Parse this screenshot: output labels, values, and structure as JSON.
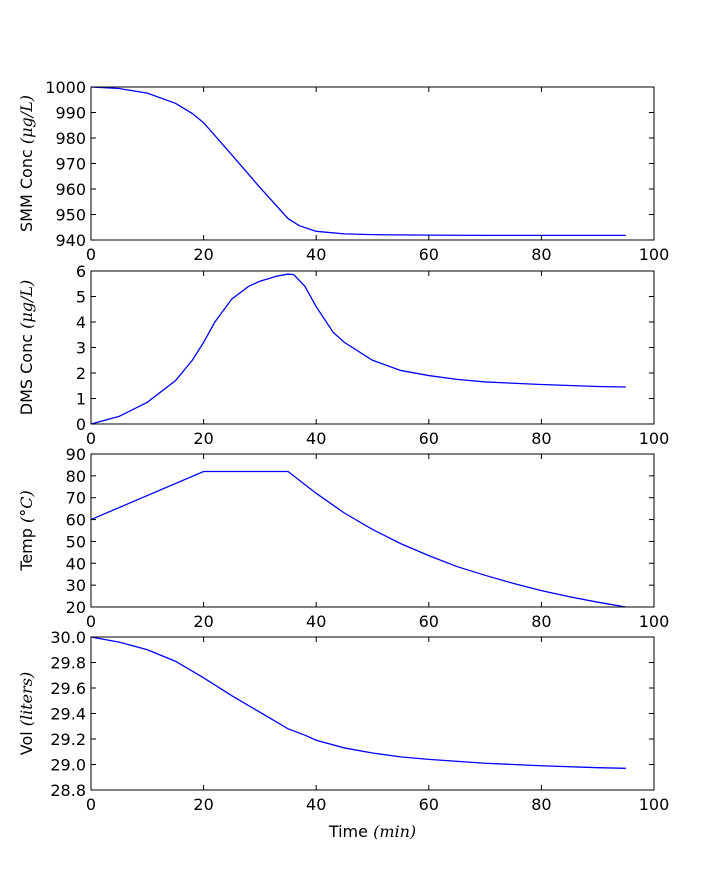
{
  "chart_data": [
    {
      "type": "line",
      "ylabel_prefix": "SMM Conc",
      "ylabel_unit": "(μg/L)",
      "xlim": [
        0,
        100
      ],
      "ylim": [
        940,
        1000
      ],
      "xticks": [
        0,
        20,
        40,
        60,
        80,
        100
      ],
      "yticks": [
        940,
        950,
        960,
        970,
        980,
        990,
        1000
      ],
      "color": "#0000ff",
      "series": [
        {
          "x": [
            0,
            5,
            10,
            15,
            18,
            20,
            25,
            30,
            35,
            37,
            40,
            45,
            50,
            60,
            70,
            80,
            90,
            95
          ],
          "y": [
            1000,
            999.4,
            997.6,
            993.6,
            989.6,
            986,
            973.4,
            960.6,
            948.4,
            945.6,
            943.4,
            942.4,
            942.1,
            941.9,
            941.8,
            941.8,
            941.8,
            941.8
          ]
        }
      ]
    },
    {
      "type": "line",
      "ylabel_prefix": "DMS Conc",
      "ylabel_unit": "(μg/L)",
      "xlim": [
        0,
        100
      ],
      "ylim": [
        0,
        6
      ],
      "xticks": [
        0,
        20,
        40,
        60,
        80,
        100
      ],
      "yticks": [
        0,
        1,
        2,
        3,
        4,
        5,
        6
      ],
      "color": "#0000ff",
      "series": [
        {
          "x": [
            0,
            5,
            10,
            15,
            18,
            20,
            22,
            25,
            28,
            30,
            33,
            35,
            36,
            38,
            40,
            43,
            45,
            50,
            55,
            60,
            65,
            70,
            80,
            90,
            95
          ],
          "y": [
            0,
            0.3,
            0.85,
            1.7,
            2.5,
            3.2,
            4.0,
            4.9,
            5.4,
            5.6,
            5.8,
            5.88,
            5.86,
            5.4,
            4.6,
            3.6,
            3.2,
            2.5,
            2.1,
            1.9,
            1.75,
            1.65,
            1.55,
            1.47,
            1.45
          ]
        }
      ]
    },
    {
      "type": "line",
      "ylabel_prefix": "Temp",
      "ylabel_unit": "(°C)",
      "xlim": [
        0,
        100
      ],
      "ylim": [
        20,
        90
      ],
      "xticks": [
        0,
        20,
        40,
        60,
        80,
        100
      ],
      "yticks": [
        20,
        30,
        40,
        50,
        60,
        70,
        80,
        90
      ],
      "color": "#0000ff",
      "series": [
        {
          "x": [
            0,
            20,
            35,
            40,
            45,
            50,
            55,
            60,
            65,
            70,
            75,
            80,
            85,
            90,
            95
          ],
          "y": [
            60,
            82,
            82,
            72,
            63,
            55.5,
            49,
            43.5,
            38.5,
            34.5,
            30.8,
            27.5,
            24.7,
            22.2,
            20
          ]
        }
      ]
    },
    {
      "type": "line",
      "ylabel_prefix": "Vol",
      "ylabel_unit": "(liters)",
      "xlabel_prefix": "Time",
      "xlabel_unit": "(min)",
      "xlim": [
        0,
        100
      ],
      "ylim": [
        28.8,
        30.0
      ],
      "xticks": [
        0,
        20,
        40,
        60,
        80,
        100
      ],
      "yticks": [
        28.8,
        29.0,
        29.2,
        29.4,
        29.6,
        29.8,
        30.0
      ],
      "color": "#0000ff",
      "series": [
        {
          "x": [
            0,
            5,
            10,
            15,
            20,
            25,
            30,
            35,
            38,
            40,
            45,
            50,
            55,
            60,
            70,
            80,
            90,
            95
          ],
          "y": [
            30.0,
            29.96,
            29.9,
            29.81,
            29.68,
            29.54,
            29.41,
            29.28,
            29.23,
            29.19,
            29.13,
            29.09,
            29.06,
            29.04,
            29.01,
            28.99,
            28.975,
            28.97
          ]
        }
      ]
    }
  ]
}
